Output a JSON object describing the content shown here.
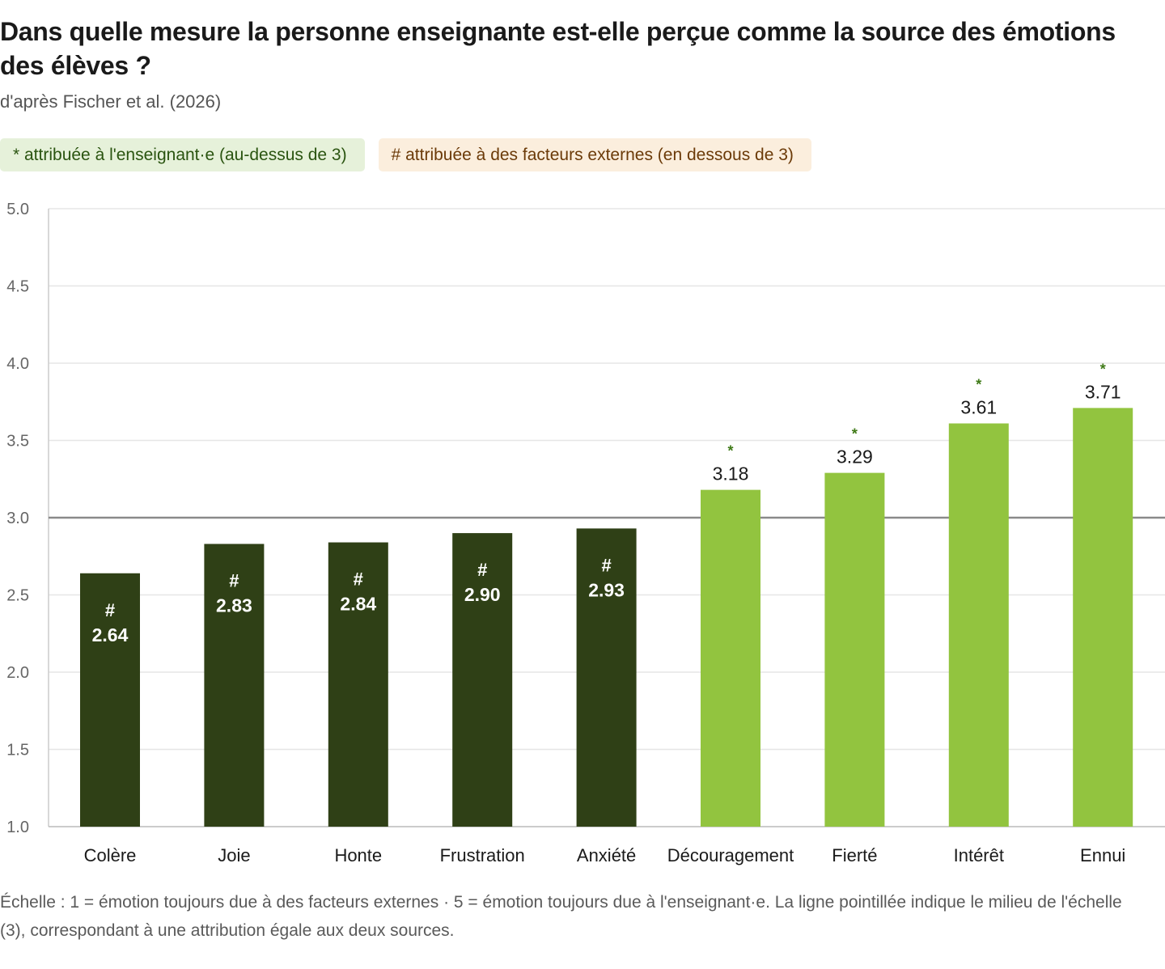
{
  "title": "Dans quelle mesure la personne enseignante est-elle perçue comme la source des émotions des élèves ?",
  "subtitle": "d'après Fischer et al. (2026)",
  "legend": {
    "above": "* attribuée à l'enseignant·e (au-dessus de 3)",
    "below": "# attribuée à des facteurs externes (en dessous de 3)"
  },
  "colors": {
    "below": "#2f4016",
    "above": "#92c43f",
    "star": "#3f7a17",
    "grid": "#e6e6e6",
    "reference": "#8a8a8a"
  },
  "chart_data": {
    "type": "bar",
    "title": "Dans quelle mesure la personne enseignante est-elle perçue comme la source des émotions des élèves ?",
    "xlabel": "",
    "ylabel": "",
    "categories": [
      "Colère",
      "Joie",
      "Honte",
      "Frustration",
      "Anxiété",
      "Découragement",
      "Fierté",
      "Intérêt",
      "Ennui"
    ],
    "values": [
      2.64,
      2.83,
      2.84,
      2.9,
      2.93,
      3.18,
      3.29,
      3.61,
      3.71
    ],
    "value_labels": [
      "2.64",
      "2.83",
      "2.84",
      "2.90",
      "2.93",
      "3.18",
      "3.29",
      "3.61",
      "3.71"
    ],
    "markers": [
      "#",
      "#",
      "#",
      "#",
      "#",
      "*",
      "*",
      "*",
      "*"
    ],
    "ylim": [
      1.0,
      5.0
    ],
    "yticks": [
      "1.0",
      "1.5",
      "2.0",
      "2.5",
      "3.0",
      "3.5",
      "4.0",
      "4.5",
      "5.0"
    ],
    "reference_line": 3.0,
    "grid": true
  },
  "footnote": "Échelle : 1 = émotion toujours due à des facteurs externes · 5 = émotion toujours due à l'enseignant·e. La ligne pointillée indique le milieu de l'échelle (3), correspondant à une attribution égale aux deux sources."
}
